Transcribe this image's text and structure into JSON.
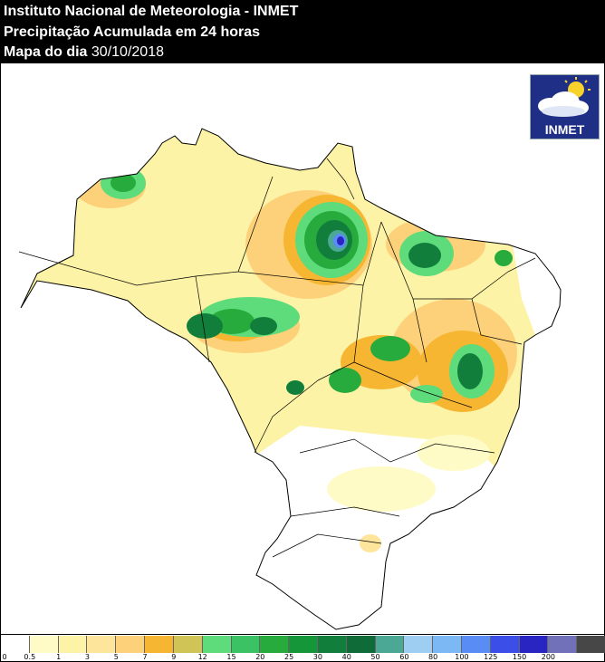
{
  "header": {
    "line1": "Instituto Nacional de Meteorologia - INMET",
    "line2": "Precipitação Acumulada em 24 horas",
    "line3_label": "Mapa do dia",
    "line3_date": "30/10/2018"
  },
  "logo": {
    "text": "INMET",
    "icon": "sun-cloud-icon"
  },
  "legend": {
    "ticks": [
      "0",
      "0.5",
      "1",
      "3",
      "5",
      "7",
      "9",
      "12",
      "15",
      "20",
      "25",
      "30",
      "40",
      "50",
      "60",
      "80",
      "100",
      "125",
      "150",
      "200"
    ],
    "colors": [
      "#ffffff",
      "#fefbc7",
      "#fdf3a6",
      "#fde59b",
      "#fcd17a",
      "#f7b632",
      "#cfc455",
      "#5edb7b",
      "#3ac264",
      "#27ab3d",
      "#159638",
      "#117f3b",
      "#0f6b37",
      "#4aa894",
      "#9ecff3",
      "#7bb8f4",
      "#5a8cf5",
      "#3b4fe8",
      "#2825c3",
      "#7171b9",
      "#474747"
    ]
  },
  "colors": {
    "header_bg": "#000000",
    "land_dry": "#ffffff",
    "rain_light": "#fdf3a6",
    "rain_moderate": "#f7b632",
    "rain_heavy": "#27ab3d",
    "rain_extreme": "#3b4fe8"
  }
}
